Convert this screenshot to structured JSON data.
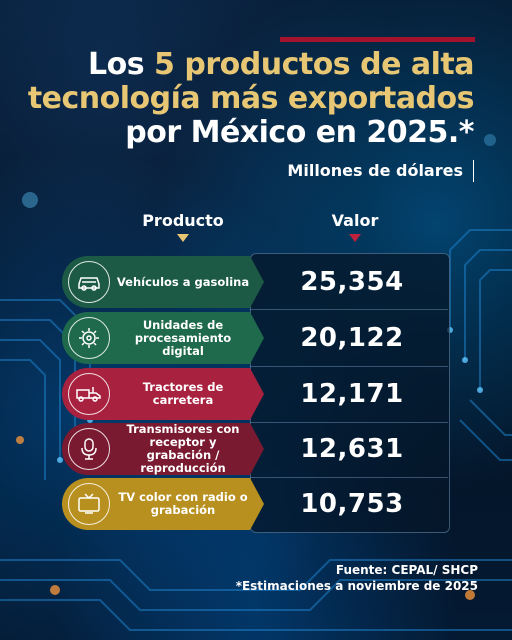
{
  "title": {
    "line1_prefix": "Los ",
    "line1_gold": "5 productos de alta",
    "line2": "tecnología más exportados",
    "line3": "por México en 2025.*"
  },
  "unit": "Millones de dólares",
  "columns": {
    "product": "Producto",
    "value": "Valor"
  },
  "rows": [
    {
      "label": "Vehículos a gasolina",
      "value": "25,354",
      "color": "#1d5a45",
      "icon": "car-icon"
    },
    {
      "label": "Unidades de procesamiento digital",
      "value": "20,122",
      "color": "#1f6a4c",
      "icon": "chip-gear-icon"
    },
    {
      "label": "Tractores de carretera",
      "value": "12,171",
      "color": "#a8213f",
      "icon": "truck-icon"
    },
    {
      "label": "Transmisores con receptor y grabación / reproducción",
      "value": "12,631",
      "color": "#7a1a30",
      "icon": "microphone-icon"
    },
    {
      "label": "TV color con radio o grabación",
      "value": "10,753",
      "color": "#b8901f",
      "icon": "tv-icon"
    }
  ],
  "source": {
    "line1": "Fuente: CEPAL/ SHCP",
    "line2": "*Estimaciones a noviembre de 2025"
  },
  "colors": {
    "accent_gold": "#e8c774",
    "accent_red": "#a3132d"
  }
}
